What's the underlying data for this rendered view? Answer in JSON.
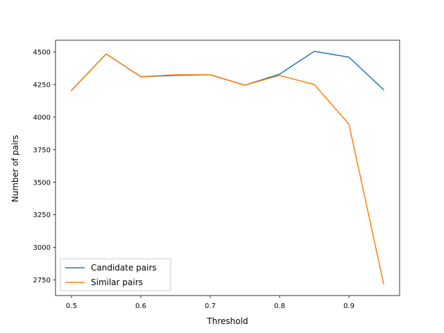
{
  "chart_data": {
    "type": "line",
    "title": "",
    "xlabel": "Threshold",
    "ylabel": "Number of pairs",
    "xlim": [
      0.477,
      0.973
    ],
    "ylim": [
      2630,
      4590
    ],
    "xticks": [
      0.5,
      0.6,
      0.7,
      0.8,
      0.9
    ],
    "xtick_labels": [
      "0.5",
      "0.6",
      "0.7",
      "0.8",
      "0.9"
    ],
    "yticks": [
      2750,
      3000,
      3250,
      3500,
      3750,
      4000,
      4250,
      4500
    ],
    "ytick_labels": [
      "2750",
      "3000",
      "3250",
      "3500",
      "3750",
      "4000",
      "4250",
      "4500"
    ],
    "grid": false,
    "legend_position": "lower-left",
    "x": [
      0.5,
      0.55,
      0.6,
      0.65,
      0.7,
      0.75,
      0.8,
      0.85,
      0.9,
      0.95
    ],
    "series": [
      {
        "name": "Candidate pairs",
        "color": "#1f77b4",
        "values": [
          4205,
          4485,
          4310,
          4320,
          4325,
          4245,
          4330,
          4505,
          4460,
          4210
        ]
      },
      {
        "name": "Similar pairs",
        "color": "#ff7f0e",
        "values": [
          4205,
          4485,
          4310,
          4325,
          4325,
          4245,
          4320,
          4250,
          3945,
          2720
        ]
      }
    ]
  }
}
